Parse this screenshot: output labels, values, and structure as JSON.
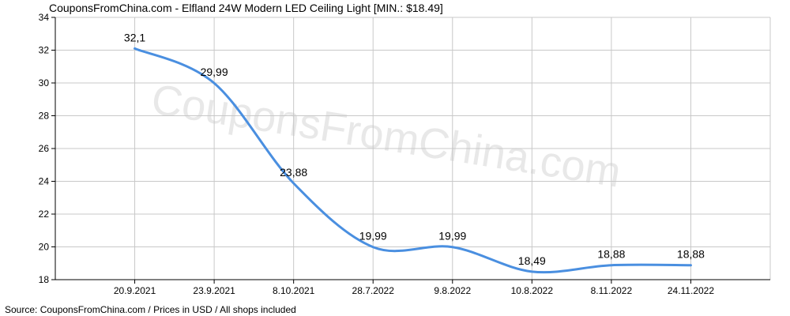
{
  "title": "CouponsFromChina.com - Elfland 24W Modern LED Ceiling Light [MIN.: $18.49]",
  "watermark": "CouponsFromChina.com",
  "source": "Source: CouponsFromChina.com / Prices in USD / All shops included",
  "colors": {
    "line": "#4a8fe0",
    "grid": "#c8c8c8",
    "axis": "#000000",
    "watermark": "#dcdcdc"
  },
  "chart_data": {
    "type": "line",
    "title": "CouponsFromChina.com - Elfland 24W Modern LED Ceiling Light [MIN.: $18.49]",
    "xlabel": "",
    "ylabel": "",
    "categories": [
      "20.9.2021",
      "23.9.2021",
      "8.10.2021",
      "28.7.2022",
      "9.8.2022",
      "10.8.2022",
      "8.11.2022",
      "24.11.2022"
    ],
    "series": [
      {
        "values": [
          32.1,
          29.99,
          23.88,
          19.99,
          19.99,
          18.49,
          18.88,
          18.88
        ],
        "labels": [
          "32,1",
          "29,99",
          "23,88",
          "19,99",
          "19,99",
          "18,49",
          "18,88",
          "18,88"
        ]
      }
    ],
    "ylim": [
      18,
      34
    ],
    "yticks": [
      18,
      20,
      22,
      24,
      26,
      28,
      30,
      32,
      34
    ],
    "grid": true,
    "legend": "none"
  }
}
